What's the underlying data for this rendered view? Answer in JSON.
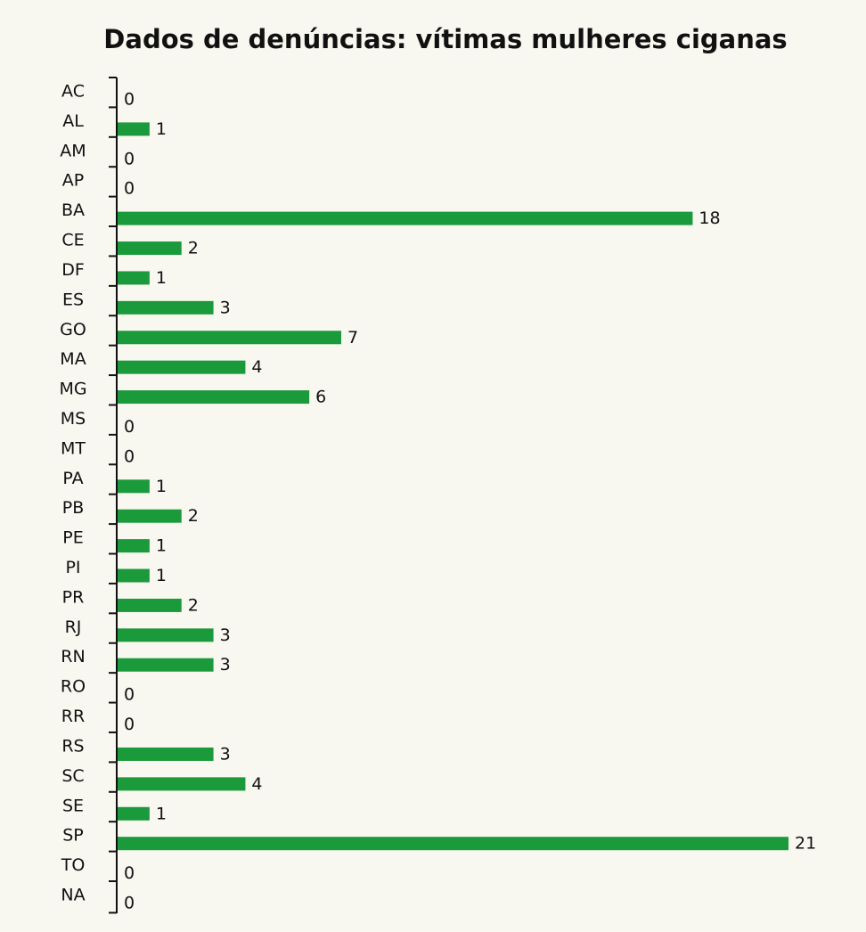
{
  "chart_data": {
    "type": "barh",
    "title": "Dados de denúncias: vítimas mulheres ciganas",
    "categories": [
      "AC",
      "AL",
      "AM",
      "AP",
      "BA",
      "CE",
      "DF",
      "ES",
      "GO",
      "MA",
      "MG",
      "MS",
      "MT",
      "PA",
      "PB",
      "PE",
      "PI",
      "PR",
      "RJ",
      "RN",
      "RO",
      "RR",
      "RS",
      "SC",
      "SE",
      "SP",
      "TO",
      "NA"
    ],
    "values": [
      0,
      1,
      0,
      0,
      18,
      2,
      1,
      3,
      7,
      4,
      6,
      0,
      0,
      1,
      2,
      1,
      1,
      2,
      3,
      3,
      0,
      0,
      3,
      4,
      1,
      21,
      0,
      0
    ],
    "color": "#1a9a3a"
  }
}
